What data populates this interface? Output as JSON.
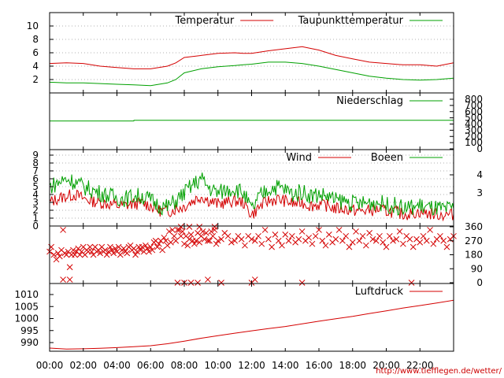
{
  "chart_data": {
    "type": "line",
    "x_tick_labels": [
      "00:00",
      "02:00",
      "04:00",
      "06:00",
      "08:00",
      "10:00",
      "12:00",
      "14:00",
      "16:00",
      "18:00",
      "20:00",
      "22:00"
    ],
    "colors": {
      "red": "#d40000",
      "green": "#00a000"
    },
    "url": "http://www.tiefflegen.de/wetter/",
    "panels": [
      {
        "id": "temperature",
        "type": "line",
        "ylim": [
          0,
          12
        ],
        "y_ticks_left": [
          "2",
          "4",
          "6",
          "8",
          "10"
        ],
        "y_tick_values_left": [
          2,
          4,
          6,
          8,
          10
        ],
        "grid": true,
        "legend_position": "top",
        "series": [
          {
            "name": "Temperatur",
            "color": "#d40000",
            "x": [
              0,
              1,
              2,
              3,
              4,
              5,
              6,
              7,
              7.5,
              8,
              9,
              10,
              11,
              11.5,
              12,
              13,
              14,
              15,
              16,
              17,
              18,
              19,
              20,
              21,
              22,
              23,
              24
            ],
            "y": [
              4.4,
              4.5,
              4.4,
              4.0,
              3.8,
              3.6,
              3.6,
              4.0,
              4.5,
              5.3,
              5.6,
              5.9,
              6.0,
              5.9,
              5.9,
              6.3,
              6.6,
              6.9,
              6.4,
              5.6,
              5.1,
              4.6,
              4.4,
              4.2,
              4.2,
              4.0,
              4.5
            ]
          },
          {
            "name": "Taupunkttemperatur",
            "color": "#00a000",
            "x": [
              0,
              1,
              2,
              3,
              4,
              5,
              6,
              7,
              7.5,
              8,
              9,
              10,
              11,
              11.5,
              12,
              13,
              14,
              15,
              16,
              17,
              18,
              19,
              20,
              21,
              22,
              23,
              24
            ],
            "y": [
              1.6,
              1.5,
              1.5,
              1.4,
              1.3,
              1.2,
              1.1,
              1.5,
              2.0,
              3.0,
              3.6,
              3.9,
              4.1,
              4.2,
              4.3,
              4.6,
              4.6,
              4.4,
              4.0,
              3.5,
              3.0,
              2.5,
              2.2,
              2.0,
              1.9,
              2.0,
              2.2
            ]
          }
        ]
      },
      {
        "id": "precipitation",
        "type": "line",
        "ylim": [
          0,
          800
        ],
        "y_ticks_right": [
          "0",
          "100",
          "200",
          "300",
          "400",
          "500",
          "600",
          "700",
          "800"
        ],
        "y_tick_values_right": [
          0,
          100,
          200,
          300,
          400,
          500,
          600,
          700,
          800
        ],
        "legend_position": "top-right",
        "series": [
          {
            "name": "Niederschlag",
            "color": "#00a000",
            "x": [
              0,
              5,
              5.01,
              24
            ],
            "y": [
              450,
              450,
              460,
              460
            ]
          }
        ]
      },
      {
        "id": "wind",
        "type": "line",
        "ylim": [
          0,
          9
        ],
        "y_ticks_left": [
          "0",
          "1",
          "2",
          "3",
          "4",
          "5",
          "6",
          "7",
          "8",
          "9"
        ],
        "y_tick_values_left": [
          0,
          1,
          2,
          3,
          4,
          5,
          6,
          7,
          8,
          9
        ],
        "y_ticks_right": [
          "3",
          "4"
        ],
        "y_tick_values_right": [
          4.2,
          6.5
        ],
        "grid": true,
        "legend_position": "top-right",
        "series": [
          {
            "name": "Wind",
            "color": "#d40000",
            "x": [
              0,
              0.5,
              1,
              1.5,
              2,
              2.5,
              3,
              3.5,
              4,
              4.5,
              5,
              5.5,
              6,
              6.5,
              7,
              7.5,
              8,
              8.5,
              9,
              9.5,
              10,
              10.5,
              11,
              11.5,
              12,
              12.5,
              13,
              13.5,
              14,
              14.5,
              15,
              15.5,
              16,
              16.5,
              17,
              17.5,
              18,
              18.5,
              19,
              19.5,
              20,
              20.5,
              21,
              21.5,
              22,
              22.5,
              23,
              23.5,
              24
            ],
            "y": [
              3.0,
              3.5,
              3.8,
              4.0,
              3.5,
              3.2,
              3.0,
              2.8,
              2.6,
              2.6,
              2.8,
              2.9,
              2.6,
              2.0,
              1.8,
              2.2,
              2.5,
              3.2,
              3.8,
              3.2,
              2.8,
              3.0,
              3.2,
              3.0,
              1.4,
              2.5,
              3.2,
              3.4,
              3.2,
              2.8,
              3.0,
              2.6,
              2.7,
              2.6,
              2.2,
              2.2,
              2.0,
              1.9,
              2.0,
              2.1,
              1.9,
              1.8,
              1.5,
              1.6,
              1.8,
              1.6,
              1.5,
              1.4,
              1.5
            ]
          },
          {
            "name": "Boeen",
            "color": "#00a000",
            "x": [
              0,
              0.5,
              1,
              1.5,
              2,
              2.5,
              3,
              3.5,
              4,
              4.5,
              5,
              5.5,
              6,
              6.5,
              7,
              7.5,
              8,
              8.5,
              9,
              9.5,
              10,
              10.5,
              11,
              11.5,
              12,
              12.5,
              13,
              13.5,
              14,
              14.5,
              15,
              15.5,
              16,
              16.5,
              17,
              17.5,
              18,
              18.5,
              19,
              19.5,
              20,
              20.5,
              21,
              21.5,
              22,
              22.5,
              23,
              23.5,
              24
            ],
            "y": [
              5.0,
              5.5,
              6.0,
              5.6,
              5.0,
              4.6,
              4.2,
              3.9,
              3.6,
              3.5,
              3.8,
              3.8,
              3.3,
              2.6,
              2.4,
              3.2,
              4.2,
              5.2,
              6.0,
              4.8,
              4.2,
              4.6,
              4.8,
              4.2,
              2.0,
              3.8,
              4.7,
              5.0,
              4.6,
              4.0,
              4.4,
              3.9,
              4.0,
              3.8,
              3.2,
              3.2,
              2.9,
              2.8,
              3.0,
              3.0,
              2.7,
              2.6,
              2.2,
              2.4,
              2.6,
              2.3,
              2.2,
              2.0,
              2.2
            ]
          }
        ]
      },
      {
        "id": "wind_direction",
        "type": "scatter",
        "ylim": [
          0,
          360
        ],
        "y_ticks_right": [
          "0",
          "90",
          "180",
          "270",
          "360"
        ],
        "y_tick_values_right": [
          0,
          90,
          180,
          270,
          360
        ],
        "marker": "x",
        "color": "#d40000",
        "series": [
          {
            "name": "",
            "color": "#d40000",
            "x": [
              0,
              0.1,
              0.25,
              0.4,
              0.5,
              0.6,
              0.7,
              0.8,
              0.9,
              1.0,
              1.1,
              1.2,
              1.3,
              1.4,
              1.5,
              1.6,
              1.7,
              1.8,
              1.9,
              2.0,
              2.1,
              2.2,
              2.3,
              2.4,
              2.5,
              2.6,
              2.7,
              2.8,
              2.9,
              3.0,
              3.1,
              3.2,
              3.3,
              3.4,
              3.5,
              3.6,
              3.7,
              3.8,
              3.9,
              4.0,
              4.1,
              4.2,
              4.3,
              4.4,
              4.5,
              4.6,
              4.7,
              4.8,
              4.9,
              5.0,
              5.1,
              5.2,
              5.3,
              5.4,
              5.5,
              5.6,
              5.7,
              5.8,
              5.9,
              6.0,
              6.1,
              6.2,
              6.3,
              6.4,
              6.5,
              6.6,
              6.7,
              6.8,
              6.9,
              7.0,
              7.1,
              7.2,
              7.3,
              7.4,
              7.5,
              7.6,
              7.7,
              7.8,
              7.9,
              8.0,
              8.1,
              8.2,
              8.3,
              8.4,
              8.5,
              8.6,
              8.7,
              8.8,
              8.9,
              9.0,
              9.1,
              9.2,
              9.3,
              9.4,
              9.5,
              9.6,
              9.7,
              9.8,
              9.9,
              10.0,
              10.2,
              10.4,
              10.6,
              10.8,
              11.0,
              11.2,
              11.4,
              11.6,
              11.8,
              12.0,
              12.2,
              12.4,
              12.6,
              12.8,
              13.0,
              13.2,
              13.4,
              13.6,
              13.8,
              14.0,
              14.2,
              14.4,
              14.6,
              14.8,
              15.0,
              15.2,
              15.4,
              15.6,
              15.8,
              16.0,
              16.2,
              16.4,
              16.6,
              16.8,
              17.0,
              17.2,
              17.4,
              17.6,
              17.8,
              18.0,
              18.2,
              18.4,
              18.6,
              18.8,
              19.0,
              19.2,
              19.4,
              19.6,
              19.8,
              20.0,
              20.2,
              20.4,
              20.6,
              20.8,
              21.0,
              21.2,
              21.4,
              21.6,
              21.8,
              22.0,
              22.2,
              22.4,
              22.6,
              22.8,
              23.0,
              23.2,
              23.4,
              23.6,
              23.8,
              24.0,
              0.8,
              1.2,
              7.6,
              8.0,
              8.4,
              8.8,
              9.4,
              10.2,
              12.0,
              12.2,
              15.0,
              21.5,
              7.8,
              8.3,
              8.9,
              9.8
            ],
            "y": [
              200,
              230,
              180,
              150,
              190,
              170,
              210,
              340,
              190,
              180,
              200,
              100,
              180,
              210,
              180,
              200,
              220,
              180,
              200,
              230,
              180,
              210,
              200,
              230,
              200,
              180,
              230,
              200,
              210,
              190,
              230,
              200,
              210,
              180,
              200,
              230,
              210,
              190,
              220,
              200,
              230,
              180,
              210,
              220,
              200,
              190,
              230,
              240,
              210,
              220,
              180,
              200,
              230,
              210,
              230,
              200,
              240,
              220,
              200,
              230,
              210,
              260,
              270,
              230,
              250,
              270,
              210,
              290,
              270,
              240,
              330,
              260,
              340,
              300,
              270,
              340,
              340,
              300,
              330,
              250,
              300,
              240,
              280,
              310,
              270,
              250,
              270,
              320,
              260,
              300,
              330,
              280,
              320,
              270,
              270,
              330,
              300,
              340,
              250,
              270,
              280,
              320,
              300,
              260,
              270,
              300,
              280,
              240,
              300,
              280,
              270,
              300,
              250,
              340,
              280,
              230,
              310,
              270,
              240,
              310,
              270,
              300,
              260,
              280,
              330,
              270,
              290,
              250,
              300,
              340,
              270,
              240,
              310,
              260,
              280,
              340,
              270,
              300,
              230,
              260,
              330,
              270,
              300,
              240,
              320,
              280,
              270,
              300,
              260,
              230,
              300,
              270,
              280,
              330,
              250,
              300,
              280,
              230,
              280,
              260,
              300,
              270,
              340,
              250,
              280,
              300,
              270,
              230,
              280,
              300,
              20,
              20,
              0,
              0,
              0,
              0,
              20,
              0,
              0,
              20,
              0,
              0,
              360,
              360,
              360,
              360
            ]
          }
        ]
      },
      {
        "id": "pressure",
        "type": "line",
        "ylim": [
          986,
          1013
        ],
        "y_ticks_left": [
          "990",
          "995",
          "1000",
          "1005",
          "1010"
        ],
        "y_tick_values_left": [
          990,
          995,
          1000,
          1005,
          1010
        ],
        "legend_position": "top-right",
        "series": [
          {
            "name": "Luftdruck",
            "color": "#d40000",
            "x": [
              0,
              1,
              2,
              3,
              4,
              5,
              6,
              7,
              8,
              9,
              10,
              11,
              12,
              13,
              14,
              15,
              16,
              17,
              18,
              19,
              20,
              21,
              22,
              23,
              24
            ],
            "y": [
              987.7,
              987.3,
              987.4,
              987.6,
              987.9,
              988.3,
              988.7,
              989.5,
              990.6,
              991.8,
              992.9,
              993.9,
              994.9,
              995.8,
              996.7,
              997.8,
              998.9,
              999.9,
              1000.9,
              1002.1,
              1003.2,
              1004.4,
              1005.4,
              1006.5,
              1007.6
            ]
          }
        ]
      }
    ]
  }
}
